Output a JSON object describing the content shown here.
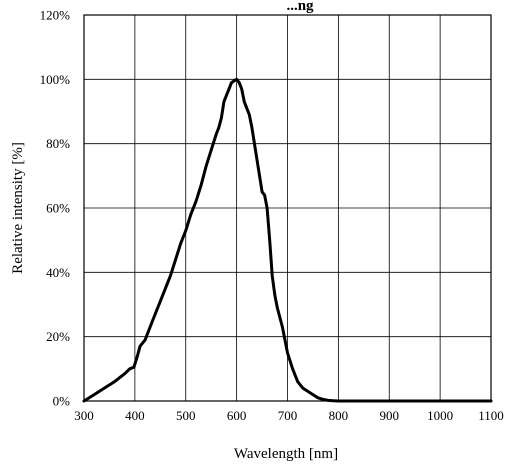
{
  "chart_data": {
    "type": "line",
    "title": "...ng",
    "xlabel": "Wavelength  [nm]",
    "ylabel": "Relative intensity [%]",
    "xlim": [
      300,
      1100
    ],
    "ylim": [
      0,
      120
    ],
    "grid": true,
    "x_ticks": [
      300,
      400,
      500,
      600,
      700,
      800,
      900,
      1000,
      1100
    ],
    "y_ticks": [
      0,
      20,
      40,
      60,
      80,
      100,
      120
    ],
    "x_tick_labels": [
      "300",
      "400",
      "500",
      "600",
      "700",
      "800",
      "900",
      "1000",
      "1100"
    ],
    "y_tick_labels": [
      "0%",
      "20%",
      "40%",
      "60%",
      "80%",
      "100%",
      "120%"
    ],
    "series": [
      {
        "color": "#000000",
        "x": [
          300,
          320,
          340,
          360,
          380,
          390,
          398,
          405,
          410,
          420,
          430,
          440,
          450,
          460,
          470,
          480,
          490,
          500,
          510,
          520,
          530,
          540,
          550,
          560,
          565,
          570,
          575,
          580,
          585,
          590,
          595,
          600,
          605,
          610,
          615,
          620,
          625,
          630,
          640,
          650,
          655,
          660,
          665,
          670,
          675,
          680,
          690,
          700,
          710,
          720,
          730,
          740,
          750,
          760,
          770,
          780,
          790,
          800,
          820,
          850,
          900,
          1000,
          1100
        ],
        "y": [
          0,
          2,
          4,
          6,
          8.5,
          10,
          10.5,
          14,
          17,
          19,
          23,
          27,
          31,
          35,
          39,
          44,
          49,
          53,
          58,
          62,
          67,
          73,
          78,
          83,
          85,
          88,
          93,
          95,
          97,
          99,
          99.5,
          100,
          99,
          97,
          93,
          91,
          89,
          85,
          75,
          65,
          64,
          60,
          50,
          39,
          33,
          29,
          23,
          15,
          10,
          6,
          4,
          3,
          2,
          1,
          0.5,
          0.2,
          0.1,
          0,
          0,
          0,
          0,
          0,
          0
        ]
      }
    ]
  }
}
